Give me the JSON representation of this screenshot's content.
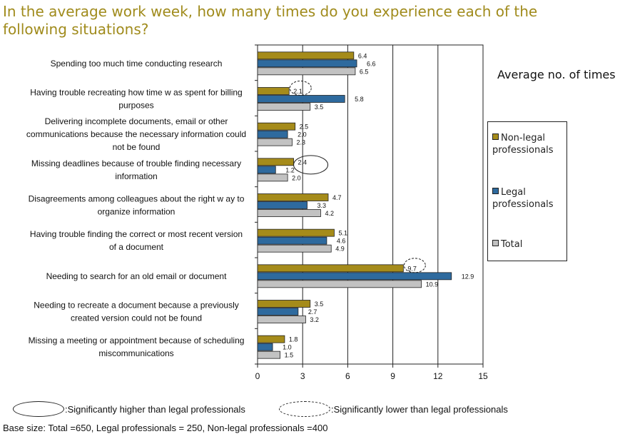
{
  "title": "In the average work week, how many times do you experience each of the following situations?",
  "unit_label": "Average no. of times",
  "legend": {
    "placement": "right",
    "items": [
      {
        "label": "Non-legal professionals",
        "color": "#a58b1a"
      },
      {
        "label": "Legal professionals",
        "color": "#2e6a9e"
      },
      {
        "label": "Total",
        "color": "#c2c2c2"
      }
    ]
  },
  "notes": {
    "higher": ":Significantly higher than legal professionals",
    "lower": ":Significantly lower than legal professionals"
  },
  "base_size": "Base size: Total =650, Legal professionals = 250, Non-legal professionals =400",
  "chart_data": {
    "type": "bar",
    "orientation": "horizontal",
    "xlim": [
      0,
      15
    ],
    "xticks": [
      0,
      3,
      6,
      9,
      12,
      15
    ],
    "grid": true,
    "categories": [
      "Spending too much time conducting research",
      "Having trouble recreating how time w as spent for billing purposes",
      "Delivering incomplete documents, email or other communications because the necessary information could not be found",
      "Missing deadlines because of trouble finding necessary information",
      "Disagreements among colleagues about the right w ay to organize information",
      "Having trouble finding the correct or most recent version of a document",
      "Needing to search for an old email or document",
      "Needing to recreate a document because a previously created version could not be found",
      "Missing a meeting or appointment because of scheduling miscommunications"
    ],
    "category_lines": [
      [
        "Spending too much time conducting research"
      ],
      [
        "Having trouble recreating how time w as spent for billing",
        "purposes"
      ],
      [
        "Delivering incomplete documents, email or other",
        "communications because the necessary information could",
        "not be found"
      ],
      [
        "Missing deadlines because of trouble finding necessary",
        "information"
      ],
      [
        "Disagreements among colleagues about the right w ay to",
        "organize information"
      ],
      [
        "Having trouble finding the correct or most recent version",
        "of a document"
      ],
      [
        "Needing to search for an old email or document"
      ],
      [
        "Needing to recreate a document because a previously",
        "created version could not be found"
      ],
      [
        "Missing a meeting or appointment because of scheduling",
        "miscommunications"
      ]
    ],
    "series": [
      {
        "name": "Non-legal professionals",
        "color": "#a58b1a",
        "values": [
          6.4,
          2.1,
          2.5,
          2.4,
          4.7,
          5.1,
          9.7,
          3.5,
          1.8
        ]
      },
      {
        "name": "Legal professionals",
        "color": "#2e6a9e",
        "values": [
          6.6,
          5.8,
          2.0,
          1.2,
          3.3,
          4.6,
          12.9,
          2.7,
          1.0
        ]
      },
      {
        "name": "Total",
        "color": "#c2c2c2",
        "values": [
          6.5,
          3.5,
          2.3,
          2.0,
          4.2,
          4.9,
          10.9,
          3.2,
          1.5
        ]
      }
    ],
    "value_labels": [
      [
        "6.4",
        "6.6",
        "6.5"
      ],
      [
        "2.1",
        "5.8",
        "3.5"
      ],
      [
        "2.5",
        "2.0",
        "2.3"
      ],
      [
        "2.4",
        "1.2",
        "2.0"
      ],
      [
        "4.7",
        "3.3",
        "4.2"
      ],
      [
        "5.1",
        "4.6",
        "4.9"
      ],
      [
        "9.7",
        "12.9",
        "10.9"
      ],
      [
        "3.5",
        "2.7",
        "3.2"
      ],
      [
        "1.8",
        "1.0",
        "1.5"
      ]
    ],
    "significance": [
      {
        "category_index": 1,
        "series_index": 0,
        "type": "lower"
      },
      {
        "category_index": 3,
        "series_index": 0,
        "type": "higher"
      },
      {
        "category_index": 6,
        "series_index": 0,
        "type": "lower"
      }
    ]
  }
}
